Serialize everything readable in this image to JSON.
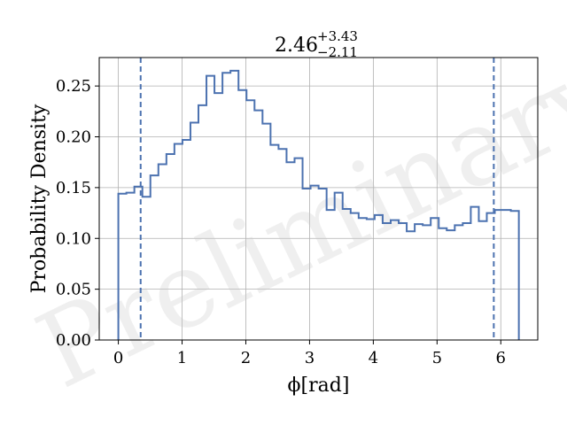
{
  "chart_data": {
    "type": "histogram",
    "title": {
      "main": "2.46",
      "sup": "+3.43",
      "sub": "−2.11"
    },
    "xlabel": "ϕ[rad]",
    "ylabel": "Probability Density",
    "watermark": "Preliminary",
    "xlim": [
      -0.3,
      6.58
    ],
    "ylim": [
      0,
      0.278
    ],
    "xticks": [
      0,
      1,
      2,
      3,
      4,
      5,
      6
    ],
    "xtick_labels": [
      "0",
      "1",
      "2",
      "3",
      "4",
      "5",
      "6"
    ],
    "yticks": [
      0.0,
      0.05,
      0.1,
      0.15,
      0.2,
      0.25
    ],
    "ytick_labels": [
      "0.00",
      "0.05",
      "0.10",
      "0.15",
      "0.20",
      "0.25"
    ],
    "grid": true,
    "bin_edges": [
      0,
      0.1257,
      0.2513,
      0.377,
      0.5027,
      0.6283,
      0.754,
      0.8796,
      1.0053,
      1.131,
      1.2566,
      1.3823,
      1.508,
      1.6336,
      1.7593,
      1.885,
      2.0106,
      2.1363,
      2.2619,
      2.3876,
      2.5133,
      2.6389,
      2.7646,
      2.8903,
      3.0159,
      3.1416,
      3.2673,
      3.3929,
      3.5186,
      3.6442,
      3.7699,
      3.8956,
      4.0212,
      4.1469,
      4.2726,
      4.3982,
      4.5239,
      4.6496,
      4.7752,
      4.9009,
      5.0265,
      5.1522,
      5.2779,
      5.4035,
      5.5292,
      5.6549,
      5.7805,
      5.9062,
      6.0319,
      6.1575,
      6.2832
    ],
    "densities": [
      0.144,
      0.145,
      0.151,
      0.141,
      0.162,
      0.173,
      0.183,
      0.193,
      0.197,
      0.214,
      0.231,
      0.26,
      0.243,
      0.263,
      0.265,
      0.246,
      0.236,
      0.226,
      0.213,
      0.192,
      0.188,
      0.175,
      0.179,
      0.149,
      0.152,
      0.149,
      0.128,
      0.145,
      0.129,
      0.125,
      0.12,
      0.119,
      0.123,
      0.115,
      0.118,
      0.115,
      0.107,
      0.114,
      0.113,
      0.12,
      0.11,
      0.108,
      0.113,
      0.115,
      0.131,
      0.117,
      0.125,
      0.128,
      0.128,
      0.127
    ],
    "vlines": [
      0.35,
      5.89
    ],
    "colors": {
      "series": "#4c72b0",
      "grid": "#b0b0b0",
      "axes": "#000000"
    }
  }
}
